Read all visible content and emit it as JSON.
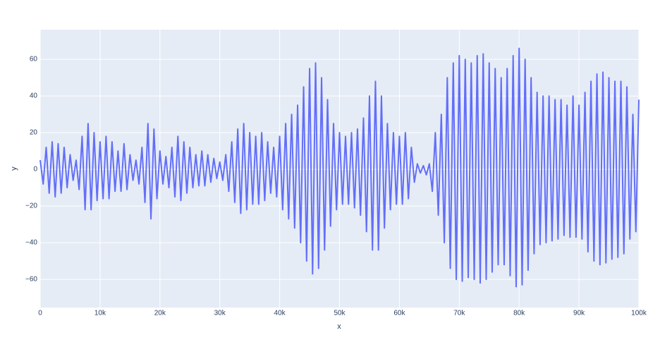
{
  "chart_data": {
    "type": "line",
    "x": [
      0,
      500,
      1000,
      1500,
      2000,
      2500,
      3000,
      3500,
      4000,
      4500,
      5000,
      5500,
      6000,
      6500,
      7000,
      7500,
      8000,
      8500,
      9000,
      9500,
      10000,
      10500,
      11000,
      11500,
      12000,
      12500,
      13000,
      13500,
      14000,
      14500,
      15000,
      15500,
      16000,
      16500,
      17000,
      17500,
      18000,
      18500,
      19000,
      19500,
      20000,
      20500,
      21000,
      21500,
      22000,
      22500,
      23000,
      23500,
      24000,
      24500,
      25000,
      25500,
      26000,
      26500,
      27000,
      27500,
      28000,
      28500,
      29000,
      29500,
      30000,
      30500,
      31000,
      31500,
      32000,
      32500,
      33000,
      33500,
      34000,
      34500,
      35000,
      35500,
      36000,
      36500,
      37000,
      37500,
      38000,
      38500,
      39000,
      39500,
      40000,
      40500,
      41000,
      41500,
      42000,
      42500,
      43000,
      43500,
      44000,
      44500,
      45000,
      45500,
      46000,
      46500,
      47000,
      47500,
      48000,
      48500,
      49000,
      49500,
      50000,
      50500,
      51000,
      51500,
      52000,
      52500,
      53000,
      53500,
      54000,
      54500,
      55000,
      55500,
      56000,
      56500,
      57000,
      57500,
      58000,
      58500,
      59000,
      59500,
      60000,
      60500,
      61000,
      61500,
      62000,
      62500,
      63000,
      63500,
      64000,
      64500,
      65000,
      65500,
      66000,
      66500,
      67000,
      67500,
      68000,
      68500,
      69000,
      69500,
      70000,
      70500,
      71000,
      71500,
      72000,
      72500,
      73000,
      73500,
      74000,
      74500,
      75000,
      75500,
      76000,
      76500,
      77000,
      77500,
      78000,
      78500,
      79000,
      79500,
      80000,
      80500,
      81000,
      81500,
      82000,
      82500,
      83000,
      83500,
      84000,
      84500,
      85000,
      85500,
      86000,
      86500,
      87000,
      87500,
      88000,
      88500,
      89000,
      89500,
      90000,
      90500,
      91000,
      91500,
      92000,
      92500,
      93000,
      93500,
      94000,
      94500,
      95000,
      95500,
      96000,
      96500,
      97000,
      97500,
      98000,
      98500,
      99000,
      99500,
      100000
    ],
    "values": [
      5,
      -8,
      12,
      -13,
      15,
      -15,
      14,
      -13,
      12,
      -10,
      8,
      -6,
      5,
      -11,
      18,
      -22,
      25,
      -22,
      20,
      -17,
      15,
      -16,
      18,
      -16,
      15,
      -12,
      10,
      -12,
      14,
      -11,
      8,
      -6,
      5,
      -8,
      12,
      -18,
      25,
      -27,
      22,
      -16,
      10,
      -8,
      7,
      -10,
      12,
      -15,
      18,
      -17,
      15,
      -13,
      12,
      -10,
      8,
      -9,
      10,
      -9,
      8,
      -7,
      6,
      -5,
      4,
      -6,
      8,
      -12,
      15,
      -18,
      22,
      -24,
      25,
      -22,
      20,
      -19,
      18,
      -19,
      20,
      -17,
      15,
      -13,
      12,
      -15,
      18,
      -22,
      25,
      -27,
      30,
      -32,
      35,
      -40,
      45,
      -50,
      55,
      -57,
      58,
      -54,
      50,
      -44,
      38,
      -31,
      25,
      -22,
      20,
      -19,
      18,
      -19,
      20,
      -21,
      22,
      -25,
      28,
      -34,
      40,
      -44,
      48,
      -44,
      40,
      -32,
      25,
      -22,
      20,
      -19,
      18,
      -19,
      20,
      -16,
      12,
      -7,
      3,
      -2,
      2,
      -3,
      3,
      -12,
      20,
      -25,
      30,
      -40,
      50,
      -54,
      58,
      -60,
      62,
      -61,
      60,
      -59,
      58,
      -60,
      62,
      -62,
      63,
      -60,
      58,
      -56,
      55,
      -52,
      50,
      -52,
      55,
      -58,
      62,
      -64,
      66,
      -63,
      60,
      -55,
      50,
      -46,
      42,
      -41,
      40,
      -40,
      40,
      -39,
      38,
      -38,
      38,
      -36,
      35,
      -37,
      40,
      -37,
      35,
      -38,
      42,
      -45,
      48,
      -50,
      52,
      -52,
      53,
      -51,
      50,
      -49,
      48,
      -48,
      48,
      -46,
      45,
      -38,
      30,
      -34,
      38
    ],
    "color": "#636efa",
    "x_label": "x",
    "y_label": "y",
    "xlim": [
      0,
      100000
    ],
    "xticks": [
      0,
      {
        "value": 10000,
        "label": "10k"
      },
      {
        "value": 20000,
        "label": "20k"
      },
      {
        "value": 30000,
        "label": "30k"
      },
      {
        "value": 40000,
        "label": "40k"
      },
      {
        "value": 50000,
        "label": "50k"
      },
      {
        "value": 60000,
        "label": "60k"
      },
      {
        "value": 70000,
        "label": "70k"
      },
      {
        "value": 80000,
        "label": "80k"
      },
      {
        "value": 90000,
        "label": "90k"
      },
      {
        "value": 100000,
        "label": "100k"
      }
    ],
    "ylim": [
      -75.4,
      76.2
    ],
    "yticks": [
      {
        "value": -60,
        "label": "−60"
      },
      {
        "value": -40,
        "label": "−40"
      },
      {
        "value": -20,
        "label": "−20"
      },
      0,
      20,
      40,
      60
    ],
    "grid": true
  }
}
